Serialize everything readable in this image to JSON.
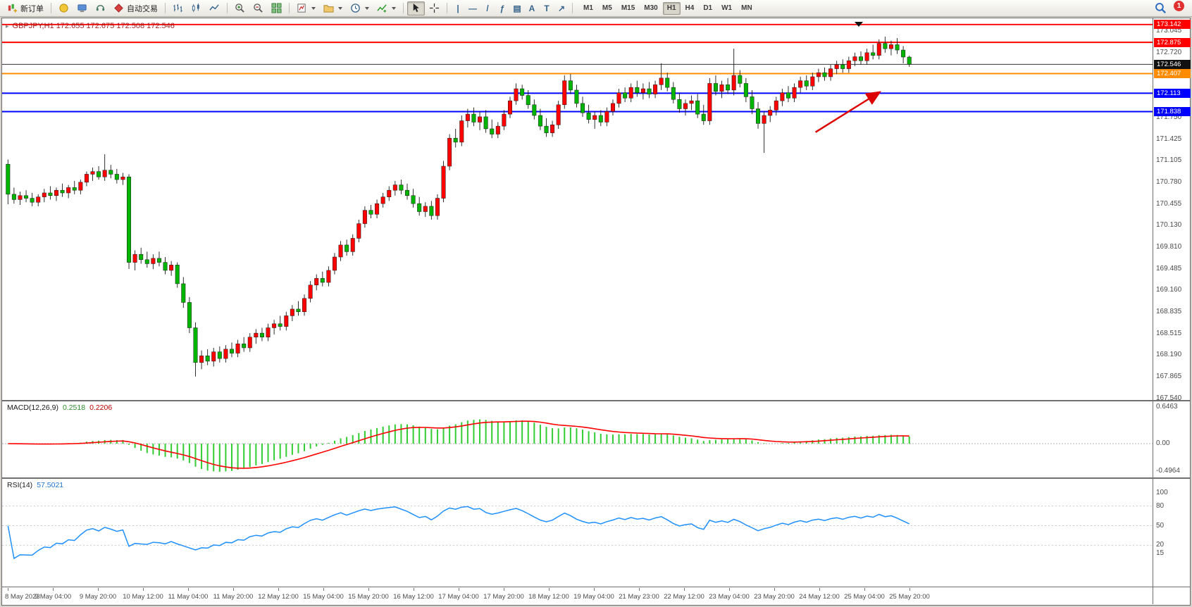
{
  "toolbar": {
    "new_order_label": "新订单",
    "auto_trading_label": "自动交易",
    "timeframes": [
      "M1",
      "M5",
      "M15",
      "M30",
      "H1",
      "H4",
      "D1",
      "W1",
      "MN"
    ],
    "selected_timeframe": "H1",
    "notification_count": "1",
    "draw_tools": [
      {
        "name": "vertical-line-tool",
        "glyph": "|"
      },
      {
        "name": "horizontal-line-tool",
        "glyph": "—"
      },
      {
        "name": "trendline-tool",
        "glyph": "/"
      },
      {
        "name": "fibonacci-tool",
        "glyph": "ƒ"
      },
      {
        "name": "channel-tool",
        "glyph": "▤"
      },
      {
        "name": "text-tool",
        "glyph": "A"
      },
      {
        "name": "label-tool",
        "glyph": "T"
      },
      {
        "name": "arrows-tool",
        "glyph": "↗"
      }
    ]
  },
  "chart": {
    "header_text": "GBPJPY,H1 172.655 172.675 172.508 172.546",
    "one_click_glyph": "▸",
    "bid": {
      "price": 172.546,
      "color": "#333333"
    },
    "level_lines": [
      {
        "price": 173.142,
        "color": "#ff0000",
        "width": 1.8
      },
      {
        "price": 172.875,
        "color": "#ff0000",
        "width": 2
      },
      {
        "price": 172.407,
        "color": "#ff8c00",
        "width": 2
      },
      {
        "price": 172.113,
        "color": "#0000ff",
        "width": 2
      },
      {
        "price": 171.838,
        "color": "#0000ff",
        "width": 2
      }
    ],
    "arrow": {
      "from_index": 133.5,
      "from_price": 171.53,
      "to_index": 144.6,
      "to_price": 172.15,
      "color": "#dd0000"
    },
    "candle_up_color": "#ff0000",
    "candle_down_color": "#00b400",
    "wick_color": "#1a1a1a"
  },
  "price_axis": {
    "labels": [
      "173.045",
      "172.720",
      "171.750",
      "171.425",
      "171.105",
      "170.780",
      "170.455",
      "170.130",
      "169.810",
      "169.485",
      "169.160",
      "168.835",
      "168.515",
      "168.190",
      "167.865",
      "167.540"
    ],
    "badges": [
      {
        "value": "173.142",
        "color": "#ff0000"
      },
      {
        "value": "172.875",
        "color": "#ff0000"
      },
      {
        "value": "172.546",
        "color": "#111111"
      },
      {
        "value": "172.407",
        "color": "#ff8c00"
      },
      {
        "value": "172.113",
        "color": "#0000ff"
      },
      {
        "value": "171.838",
        "color": "#0000ff"
      }
    ]
  },
  "macd_panel": {
    "name_label": "MACD(12,26,9)",
    "value_main": "0.2518",
    "value_signal": "0.2206",
    "scale_labels": [
      "0.6463",
      "0.00",
      "-0.4964"
    ],
    "histogram_color": "#32cd32",
    "signal_color": "#ff0000"
  },
  "rsi_panel": {
    "name_label": "RSI(14)",
    "value": "57.5021",
    "scale_labels": [
      "100",
      "80",
      "50",
      "20",
      "15"
    ],
    "levels": [
      80,
      50,
      20
    ],
    "line_color": "#1e90ff"
  },
  "time_axis": {
    "labels": [
      "8 May 2023",
      "9 May 04:00",
      "9 May 20:00",
      "10 May 12:00",
      "11 May 04:00",
      "11 May 20:00",
      "12 May 12:00",
      "15 May 04:00",
      "15 May 20:00",
      "16 May 12:00",
      "17 May 04:00",
      "17 May 20:00",
      "18 May 12:00",
      "19 May 04:00",
      "21 May 23:00",
      "22 May 12:00",
      "23 May 04:00",
      "23 May 20:00",
      "24 May 12:00",
      "25 May 04:00",
      "25 May 20:00"
    ]
  },
  "chart_data": {
    "type": "candlestick",
    "symbol": "GBPJPY",
    "timeframe": "H1",
    "ohlc_last": {
      "open": 172.655,
      "high": 172.675,
      "low": 172.508,
      "close": 172.546
    },
    "price_range": [
      167.519,
      173.214
    ],
    "indicators": {
      "macd": {
        "fast": 12,
        "slow": 26,
        "signal": 9,
        "current_macd": 0.2518,
        "current_signal": 0.2206,
        "scale_max": 0.6463,
        "scale_min": -0.4964
      },
      "rsi": {
        "period": 14,
        "current": 57.5021
      }
    },
    "candles": [
      [
        171.05,
        171.12,
        170.45,
        170.6
      ],
      [
        170.6,
        170.7,
        170.46,
        170.52
      ],
      [
        170.52,
        170.64,
        170.44,
        170.58
      ],
      [
        170.58,
        170.66,
        170.48,
        170.54
      ],
      [
        170.54,
        170.62,
        170.42,
        170.48
      ],
      [
        170.48,
        170.6,
        170.42,
        170.56
      ],
      [
        170.56,
        170.68,
        170.48,
        170.62
      ],
      [
        170.62,
        170.72,
        170.52,
        170.58
      ],
      [
        170.58,
        170.7,
        170.5,
        170.66
      ],
      [
        170.66,
        170.76,
        170.56,
        170.62
      ],
      [
        170.62,
        170.74,
        170.54,
        170.7
      ],
      [
        170.7,
        170.8,
        170.6,
        170.66
      ],
      [
        170.66,
        170.82,
        170.6,
        170.78
      ],
      [
        170.78,
        170.94,
        170.72,
        170.9
      ],
      [
        170.9,
        171.0,
        170.8,
        170.94
      ],
      [
        170.94,
        171.02,
        170.82,
        170.86
      ],
      [
        170.86,
        171.2,
        170.8,
        170.96
      ],
      [
        170.96,
        171.04,
        170.84,
        170.9
      ],
      [
        170.9,
        170.98,
        170.76,
        170.82
      ],
      [
        170.82,
        170.92,
        170.74,
        170.86
      ],
      [
        170.86,
        170.9,
        169.48,
        169.58
      ],
      [
        169.58,
        169.76,
        169.46,
        169.7
      ],
      [
        169.7,
        169.8,
        169.56,
        169.62
      ],
      [
        169.62,
        169.74,
        169.5,
        169.56
      ],
      [
        169.56,
        169.7,
        169.48,
        169.64
      ],
      [
        169.64,
        169.74,
        169.52,
        169.58
      ],
      [
        169.58,
        169.66,
        169.4,
        169.46
      ],
      [
        169.46,
        169.6,
        169.38,
        169.54
      ],
      [
        169.54,
        169.58,
        169.2,
        169.26
      ],
      [
        169.26,
        169.36,
        168.9,
        168.98
      ],
      [
        168.98,
        169.06,
        168.52,
        168.6
      ],
      [
        168.6,
        168.68,
        167.87,
        168.08
      ],
      [
        168.08,
        168.26,
        167.98,
        168.18
      ],
      [
        168.18,
        168.28,
        168.04,
        168.1
      ],
      [
        168.1,
        168.3,
        168.02,
        168.24
      ],
      [
        168.24,
        168.32,
        168.08,
        168.14
      ],
      [
        168.14,
        168.34,
        168.08,
        168.28
      ],
      [
        168.28,
        168.38,
        168.16,
        168.22
      ],
      [
        168.22,
        168.42,
        168.16,
        168.36
      ],
      [
        168.36,
        168.46,
        168.24,
        168.3
      ],
      [
        168.3,
        168.52,
        168.24,
        168.46
      ],
      [
        168.46,
        168.58,
        168.36,
        168.52
      ],
      [
        168.52,
        168.6,
        168.4,
        168.46
      ],
      [
        168.46,
        168.66,
        168.4,
        168.6
      ],
      [
        168.6,
        168.72,
        168.5,
        168.66
      ],
      [
        168.66,
        168.78,
        168.56,
        168.62
      ],
      [
        168.62,
        168.84,
        168.56,
        168.78
      ],
      [
        168.78,
        168.94,
        168.7,
        168.88
      ],
      [
        168.88,
        169.0,
        168.78,
        168.84
      ],
      [
        168.84,
        169.1,
        168.78,
        169.04
      ],
      [
        169.04,
        169.3,
        168.98,
        169.24
      ],
      [
        169.24,
        169.4,
        169.16,
        169.34
      ],
      [
        169.34,
        169.44,
        169.22,
        169.28
      ],
      [
        169.28,
        169.52,
        169.22,
        169.46
      ],
      [
        169.46,
        169.72,
        169.4,
        169.66
      ],
      [
        169.66,
        169.9,
        169.6,
        169.84
      ],
      [
        169.84,
        169.92,
        169.68,
        169.74
      ],
      [
        169.74,
        170.0,
        169.68,
        169.94
      ],
      [
        169.94,
        170.22,
        169.88,
        170.16
      ],
      [
        170.16,
        170.42,
        170.1,
        170.36
      ],
      [
        170.36,
        170.44,
        170.24,
        170.3
      ],
      [
        170.3,
        170.52,
        170.24,
        170.46
      ],
      [
        170.46,
        170.62,
        170.4,
        170.56
      ],
      [
        170.56,
        170.72,
        170.5,
        170.66
      ],
      [
        170.66,
        170.8,
        170.58,
        170.74
      ],
      [
        170.74,
        170.82,
        170.6,
        170.66
      ],
      [
        170.66,
        170.76,
        170.52,
        170.58
      ],
      [
        170.58,
        170.68,
        170.4,
        170.46
      ],
      [
        170.46,
        170.56,
        170.28,
        170.34
      ],
      [
        170.34,
        170.48,
        170.26,
        170.42
      ],
      [
        170.42,
        170.5,
        170.22,
        170.28
      ],
      [
        170.28,
        170.6,
        170.22,
        170.54
      ],
      [
        170.54,
        171.1,
        170.48,
        171.02
      ],
      [
        171.02,
        171.5,
        170.96,
        171.44
      ],
      [
        171.44,
        171.58,
        171.3,
        171.38
      ],
      [
        171.38,
        171.78,
        171.32,
        171.7
      ],
      [
        171.7,
        171.88,
        171.6,
        171.8
      ],
      [
        171.8,
        171.9,
        171.62,
        171.68
      ],
      [
        171.68,
        171.84,
        171.56,
        171.76
      ],
      [
        171.76,
        171.86,
        171.52,
        171.58
      ],
      [
        171.58,
        171.72,
        171.44,
        171.5
      ],
      [
        171.5,
        171.68,
        171.44,
        171.62
      ],
      [
        171.62,
        171.86,
        171.56,
        171.8
      ],
      [
        171.8,
        172.06,
        171.74,
        172.0
      ],
      [
        172.0,
        172.26,
        171.94,
        172.18
      ],
      [
        172.18,
        172.24,
        172.02,
        172.08
      ],
      [
        172.08,
        172.16,
        171.88,
        171.94
      ],
      [
        171.94,
        172.02,
        171.72,
        171.78
      ],
      [
        171.78,
        171.88,
        171.56,
        171.62
      ],
      [
        171.62,
        171.74,
        171.46,
        171.52
      ],
      [
        171.52,
        171.7,
        171.46,
        171.64
      ],
      [
        171.64,
        172.0,
        171.58,
        171.94
      ],
      [
        171.94,
        172.38,
        171.88,
        172.3
      ],
      [
        172.3,
        172.4,
        172.1,
        172.16
      ],
      [
        172.16,
        172.24,
        171.9,
        171.96
      ],
      [
        171.96,
        172.06,
        171.76,
        171.82
      ],
      [
        171.82,
        171.94,
        171.66,
        171.72
      ],
      [
        171.72,
        171.84,
        171.58,
        171.78
      ],
      [
        171.78,
        171.86,
        171.62,
        171.68
      ],
      [
        171.68,
        171.9,
        171.62,
        171.84
      ],
      [
        171.84,
        172.02,
        171.78,
        171.96
      ],
      [
        171.96,
        172.18,
        171.9,
        172.12
      ],
      [
        172.12,
        172.2,
        171.98,
        172.04
      ],
      [
        172.04,
        172.26,
        171.98,
        172.2
      ],
      [
        172.2,
        172.3,
        172.06,
        172.12
      ],
      [
        172.12,
        172.26,
        172.02,
        172.18
      ],
      [
        172.18,
        172.28,
        172.04,
        172.1
      ],
      [
        172.1,
        172.3,
        172.04,
        172.24
      ],
      [
        172.24,
        172.56,
        172.16,
        172.34
      ],
      [
        172.34,
        172.42,
        172.14,
        172.2
      ],
      [
        172.2,
        172.28,
        171.96,
        172.02
      ],
      [
        172.02,
        172.12,
        171.82,
        171.88
      ],
      [
        171.88,
        172.02,
        171.78,
        171.96
      ],
      [
        171.96,
        172.08,
        171.86,
        172.0
      ],
      [
        172.0,
        172.1,
        171.74,
        171.8
      ],
      [
        171.8,
        171.94,
        171.64,
        171.7
      ],
      [
        171.7,
        172.34,
        171.64,
        172.26
      ],
      [
        172.26,
        172.38,
        172.08,
        172.14
      ],
      [
        172.14,
        172.3,
        172.04,
        172.24
      ],
      [
        172.24,
        172.34,
        172.1,
        172.16
      ],
      [
        172.16,
        172.78,
        172.08,
        172.38
      ],
      [
        172.38,
        172.46,
        172.2,
        172.26
      ],
      [
        172.26,
        172.34,
        171.98,
        172.06
      ],
      [
        172.06,
        172.16,
        171.8,
        171.88
      ],
      [
        171.88,
        171.98,
        171.58,
        171.66
      ],
      [
        171.66,
        171.84,
        171.22,
        171.78
      ],
      [
        171.78,
        171.92,
        171.68,
        171.86
      ],
      [
        171.86,
        172.06,
        171.78,
        172.0
      ],
      [
        172.0,
        172.18,
        171.92,
        172.12
      ],
      [
        172.12,
        172.22,
        171.98,
        172.04
      ],
      [
        172.04,
        172.26,
        171.98,
        172.2
      ],
      [
        172.2,
        172.36,
        172.12,
        172.3
      ],
      [
        172.3,
        172.38,
        172.16,
        172.22
      ],
      [
        172.22,
        172.42,
        172.16,
        172.36
      ],
      [
        172.36,
        172.48,
        172.28,
        172.42
      ],
      [
        172.42,
        172.5,
        172.3,
        172.36
      ],
      [
        172.36,
        172.54,
        172.3,
        172.48
      ],
      [
        172.48,
        172.6,
        172.4,
        172.54
      ],
      [
        172.54,
        172.62,
        172.42,
        172.48
      ],
      [
        172.48,
        172.66,
        172.42,
        172.6
      ],
      [
        172.6,
        172.72,
        172.52,
        172.66
      ],
      [
        172.66,
        172.74,
        172.54,
        172.6
      ],
      [
        172.6,
        172.78,
        172.54,
        172.72
      ],
      [
        172.72,
        172.84,
        172.62,
        172.68
      ],
      [
        172.68,
        172.92,
        172.62,
        172.86
      ],
      [
        172.86,
        172.96,
        172.72,
        172.78
      ],
      [
        172.78,
        172.9,
        172.68,
        172.84
      ],
      [
        172.84,
        172.94,
        172.7,
        172.76
      ],
      [
        172.76,
        172.82,
        172.56,
        172.655
      ],
      [
        172.655,
        172.675,
        172.508,
        172.546
      ]
    ]
  }
}
